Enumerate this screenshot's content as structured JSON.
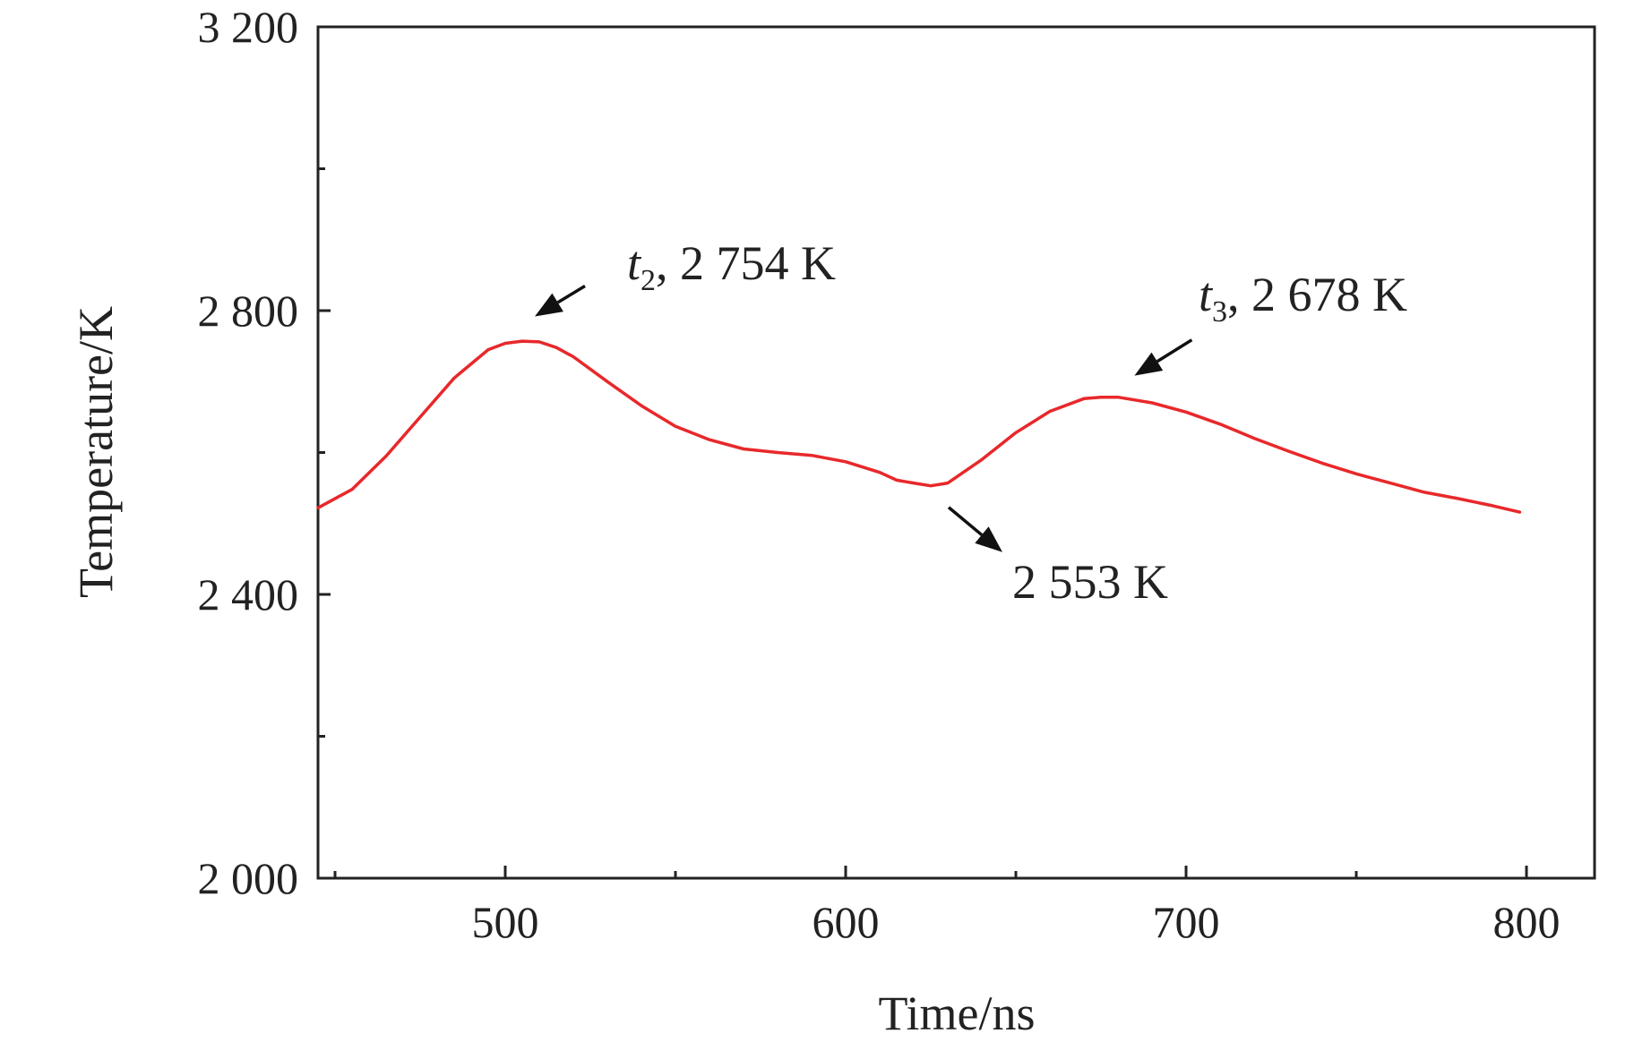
{
  "chart_data": {
    "type": "line",
    "xlabel": "Time/ns",
    "ylabel": "Temperature/K",
    "xlim": [
      445,
      820
    ],
    "ylim": [
      2000,
      3200
    ],
    "x_major_ticks": [
      500,
      600,
      700,
      800
    ],
    "x_tick_labels": [
      "500",
      "600",
      "700",
      "800"
    ],
    "x_minor_ticks": [
      450,
      550,
      650,
      750
    ],
    "y_major_ticks": [
      2000,
      2400,
      2800,
      3200
    ],
    "y_tick_labels": [
      "2 000",
      "2 400",
      "2 800",
      "3 200"
    ],
    "y_minor_ticks": [
      2200,
      2600,
      3000
    ],
    "grid": false,
    "series": [
      {
        "name": "Temperature",
        "color": "#e8282b",
        "x": [
          445,
          455,
          465,
          475,
          485,
          495,
          500,
          505,
          510,
          515,
          520,
          530,
          540,
          550,
          560,
          570,
          580,
          590,
          600,
          610,
          615,
          620,
          625,
          630,
          640,
          650,
          660,
          670,
          675,
          680,
          690,
          700,
          710,
          720,
          730,
          740,
          750,
          760,
          770,
          780,
          790,
          798
        ],
        "values": [
          2522,
          2548,
          2595,
          2650,
          2705,
          2745,
          2754,
          2757,
          2756,
          2748,
          2735,
          2700,
          2666,
          2637,
          2618,
          2605,
          2600,
          2596,
          2587,
          2572,
          2561,
          2557,
          2553,
          2557,
          2590,
          2628,
          2658,
          2676,
          2678,
          2678,
          2670,
          2657,
          2640,
          2620,
          2602,
          2585,
          2570,
          2557,
          2544,
          2535,
          2525,
          2516
        ]
      }
    ],
    "annotations": [
      {
        "symbol": "t",
        "subscript": "2",
        "text": ", 2 754 K",
        "x": 505,
        "y": 2754
      },
      {
        "symbol": "t",
        "subscript": "3",
        "text": ", 2 678 K",
        "x": 678,
        "y": 2678
      },
      {
        "symbol": "",
        "subscript": "",
        "text": "2 553 K",
        "x": 625,
        "y": 2553
      }
    ]
  }
}
